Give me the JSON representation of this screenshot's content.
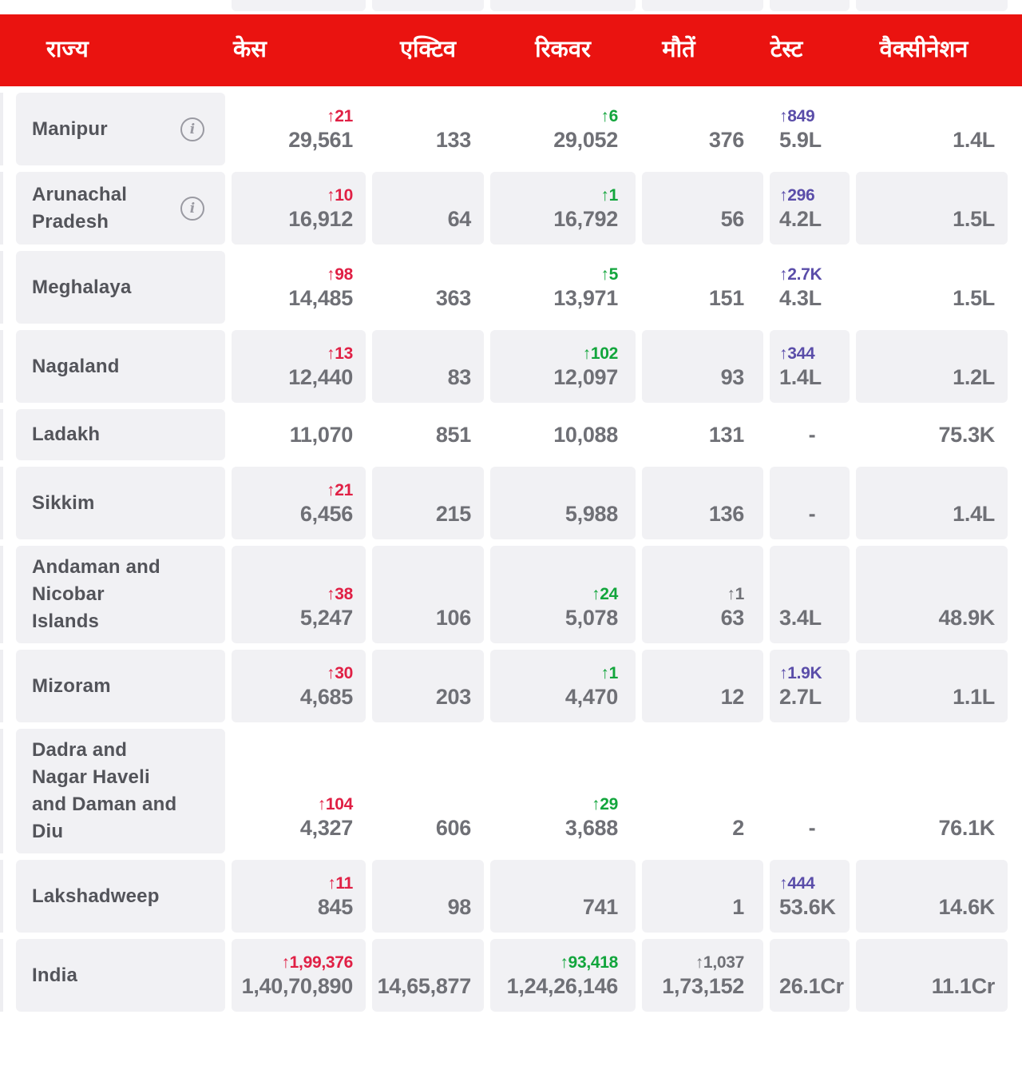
{
  "colors": {
    "header_bg": "#ea1310",
    "header_text": "#ffffff",
    "cell_shaded": "#f1f1f4",
    "state_text": "#53545a",
    "value_text": "#6f7076",
    "delta_red": "#e02045",
    "delta_green": "#12a53c",
    "delta_purple": "#5a4da9",
    "delta_gray": "#6f7076",
    "info_icon": "#9a9aa2"
  },
  "header": {
    "columns": [
      {
        "id": "state",
        "label": "राज्य"
      },
      {
        "id": "cases",
        "label": "केस"
      },
      {
        "id": "active",
        "label": "एक्टिव"
      },
      {
        "id": "recovered",
        "label": "रिकवर"
      },
      {
        "id": "deaths",
        "label": "मौतें"
      },
      {
        "id": "tests",
        "label": "टेस्ट"
      },
      {
        "id": "vaccination",
        "label": "वैक्सीनेशन"
      }
    ]
  },
  "info_icon_glyph": "i",
  "rows": [
    {
      "state": "Manipur",
      "info": true,
      "shaded": false,
      "cases": {
        "delta": "↑21",
        "delta_color": "red",
        "value": "29,561"
      },
      "active": {
        "value": "133"
      },
      "recovered": {
        "delta": "↑6",
        "delta_color": "green",
        "value": "29,052"
      },
      "deaths": {
        "value": "376"
      },
      "tests": {
        "delta": "↑849",
        "delta_color": "purple",
        "value": "5.9L"
      },
      "vaccination": {
        "value": "1.4L"
      }
    },
    {
      "state": "Arunachal\nPradesh",
      "info": true,
      "shaded": true,
      "cases": {
        "delta": "↑10",
        "delta_color": "red",
        "value": "16,912"
      },
      "active": {
        "value": "64"
      },
      "recovered": {
        "delta": "↑1",
        "delta_color": "green",
        "value": "16,792"
      },
      "deaths": {
        "value": "56"
      },
      "tests": {
        "delta": "↑296",
        "delta_color": "purple",
        "value": "4.2L"
      },
      "vaccination": {
        "value": "1.5L"
      }
    },
    {
      "state": "Meghalaya",
      "info": false,
      "shaded": false,
      "cases": {
        "delta": "↑98",
        "delta_color": "red",
        "value": "14,485"
      },
      "active": {
        "value": "363"
      },
      "recovered": {
        "delta": "↑5",
        "delta_color": "green",
        "value": "13,971"
      },
      "deaths": {
        "value": "151"
      },
      "tests": {
        "delta": "↑2.7K",
        "delta_color": "purple",
        "value": "4.3L"
      },
      "vaccination": {
        "value": "1.5L"
      }
    },
    {
      "state": "Nagaland",
      "info": false,
      "shaded": true,
      "cases": {
        "delta": "↑13",
        "delta_color": "red",
        "value": "12,440"
      },
      "active": {
        "value": "83"
      },
      "recovered": {
        "delta": "↑102",
        "delta_color": "green",
        "value": "12,097"
      },
      "deaths": {
        "value": "93"
      },
      "tests": {
        "delta": "↑344",
        "delta_color": "purple",
        "value": "1.4L"
      },
      "vaccination": {
        "value": "1.2L"
      }
    },
    {
      "state": "Ladakh",
      "info": false,
      "shaded": false,
      "cases": {
        "value": "11,070"
      },
      "active": {
        "value": "851"
      },
      "recovered": {
        "value": "10,088"
      },
      "deaths": {
        "value": "131"
      },
      "tests": {
        "value": "-"
      },
      "vaccination": {
        "value": "75.3K"
      }
    },
    {
      "state": "Sikkim",
      "info": false,
      "shaded": true,
      "cases": {
        "delta": "↑21",
        "delta_color": "red",
        "value": "6,456"
      },
      "active": {
        "value": "215"
      },
      "recovered": {
        "value": "5,988"
      },
      "deaths": {
        "value": "136"
      },
      "tests": {
        "value": "-"
      },
      "vaccination": {
        "value": "1.4L"
      }
    },
    {
      "state": "Andaman and\nNicobar\nIslands",
      "info": false,
      "shaded": true,
      "cases": {
        "delta": "↑38",
        "delta_color": "red",
        "value": "5,247"
      },
      "active": {
        "value": "106"
      },
      "recovered": {
        "delta": "↑24",
        "delta_color": "green",
        "value": "5,078"
      },
      "deaths": {
        "delta": "↑1",
        "delta_color": "gray",
        "value": "63"
      },
      "tests": {
        "value": "3.4L"
      },
      "vaccination": {
        "value": "48.9K"
      }
    },
    {
      "state": "Mizoram",
      "info": false,
      "shaded": true,
      "cases": {
        "delta": "↑30",
        "delta_color": "red",
        "value": "4,685"
      },
      "active": {
        "value": "203"
      },
      "recovered": {
        "delta": "↑1",
        "delta_color": "green",
        "value": "4,470"
      },
      "deaths": {
        "value": "12"
      },
      "tests": {
        "delta": "↑1.9K",
        "delta_color": "purple",
        "value": "2.7L"
      },
      "vaccination": {
        "value": "1.1L"
      }
    },
    {
      "state": "Dadra and\nNagar Haveli\nand Daman and\nDiu",
      "info": false,
      "shaded": false,
      "cases": {
        "delta": "↑104",
        "delta_color": "red",
        "value": "4,327"
      },
      "active": {
        "value": "606"
      },
      "recovered": {
        "delta": "↑29",
        "delta_color": "green",
        "value": "3,688"
      },
      "deaths": {
        "value": "2"
      },
      "tests": {
        "value": "-"
      },
      "vaccination": {
        "value": "76.1K"
      }
    },
    {
      "state": "Lakshadweep",
      "info": false,
      "shaded": true,
      "cases": {
        "delta": "↑11",
        "delta_color": "red",
        "value": "845"
      },
      "active": {
        "value": "98"
      },
      "recovered": {
        "value": "741"
      },
      "deaths": {
        "value": "1"
      },
      "tests": {
        "delta": "↑444",
        "delta_color": "purple",
        "value": "53.6K"
      },
      "vaccination": {
        "value": "14.6K"
      }
    },
    {
      "state": "India",
      "info": false,
      "shaded": true,
      "cases": {
        "delta": "↑1,99,376",
        "delta_color": "red",
        "value": "1,40,70,890"
      },
      "active": {
        "value": "14,65,877"
      },
      "recovered": {
        "delta": "↑93,418",
        "delta_color": "green",
        "value": "1,24,26,146"
      },
      "deaths": {
        "delta": "↑1,037",
        "delta_color": "gray",
        "value": "1,73,152"
      },
      "tests": {
        "value": "26.1Cr"
      },
      "vaccination": {
        "value": "11.1Cr"
      }
    }
  ]
}
